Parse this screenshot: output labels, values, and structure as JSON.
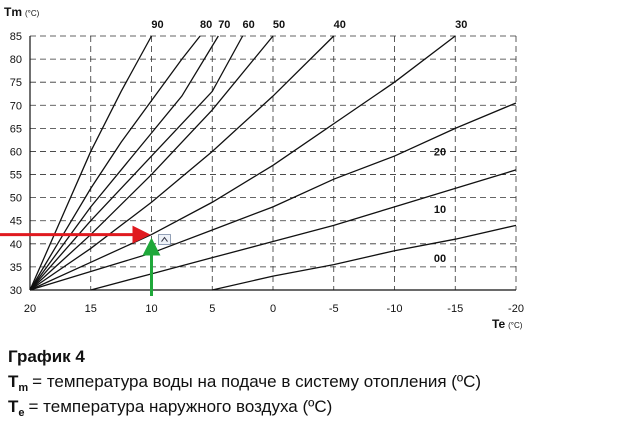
{
  "chart_data": {
    "type": "line",
    "y_label": "Tm",
    "y_unit": "(°C)",
    "x_label": "Te",
    "x_unit": "(°C)",
    "xlim": [
      20,
      -20
    ],
    "xticks": [
      20,
      15,
      10,
      5,
      0,
      -5,
      -10,
      -15,
      -20
    ],
    "ylim": [
      30,
      85
    ],
    "yticks": [
      30,
      35,
      40,
      45,
      50,
      55,
      60,
      65,
      70,
      75,
      80,
      85
    ],
    "grid": true,
    "series": [
      {
        "name": "90",
        "color": "#111111",
        "x": [
          20,
          17.5,
          15,
          12.5,
          10
        ],
        "values": [
          30,
          45,
          60,
          73,
          85
        ]
      },
      {
        "name": "80",
        "color": "#111111",
        "x": [
          20,
          17.5,
          15,
          12.5,
          10,
          7.5,
          6
        ],
        "values": [
          30,
          41,
          52,
          62,
          71,
          80,
          85
        ]
      },
      {
        "name": "70",
        "color": "#111111",
        "x": [
          20,
          15,
          10,
          7.5,
          4.5
        ],
        "values": [
          30,
          48,
          64,
          72,
          85
        ]
      },
      {
        "name": "60",
        "color": "#111111",
        "x": [
          20,
          15,
          10,
          5,
          2.5
        ],
        "values": [
          30,
          45,
          59,
          73,
          85
        ]
      },
      {
        "name": "50",
        "color": "#111111",
        "x": [
          20,
          15,
          10,
          5,
          0
        ],
        "values": [
          30,
          42,
          55,
          69,
          85
        ]
      },
      {
        "name": "40",
        "color": "#111111",
        "x": [
          20,
          15,
          10,
          5,
          0,
          -5
        ],
        "values": [
          30,
          39,
          49,
          60,
          72,
          85
        ]
      },
      {
        "name": "30",
        "color": "#111111",
        "x": [
          20,
          15,
          10,
          5,
          0,
          -5,
          -10,
          -15
        ],
        "values": [
          30,
          36,
          42,
          49,
          57,
          66,
          75,
          85
        ]
      },
      {
        "name": "20",
        "color": "#111111",
        "x": [
          20,
          15,
          10,
          5,
          0,
          -5,
          -10,
          -15,
          -20
        ],
        "values": [
          30,
          34,
          38,
          43,
          48,
          54,
          59,
          65,
          70.5
        ]
      },
      {
        "name": "10",
        "color": "#111111",
        "x": [
          15,
          10,
          5,
          0,
          -5,
          -10,
          -15,
          -20
        ],
        "values": [
          30,
          33.5,
          37,
          40.5,
          44,
          48,
          52,
          56
        ]
      },
      {
        "name": "00",
        "color": "#111111",
        "x": [
          5,
          0,
          -5,
          -10,
          -15,
          -20
        ],
        "values": [
          30,
          33,
          35.5,
          38.5,
          41,
          44
        ]
      }
    ],
    "marker": {
      "x": 10,
      "y": 42
    },
    "caption": {
      "title": "График 4",
      "lines": [
        {
          "symbol": "T",
          "sub": "m",
          "text": "= температура воды на подаче в систему отопления (ºC)"
        },
        {
          "symbol": "T",
          "sub": "е",
          "text": "= температура наружного воздуха (ºC)"
        }
      ]
    }
  }
}
